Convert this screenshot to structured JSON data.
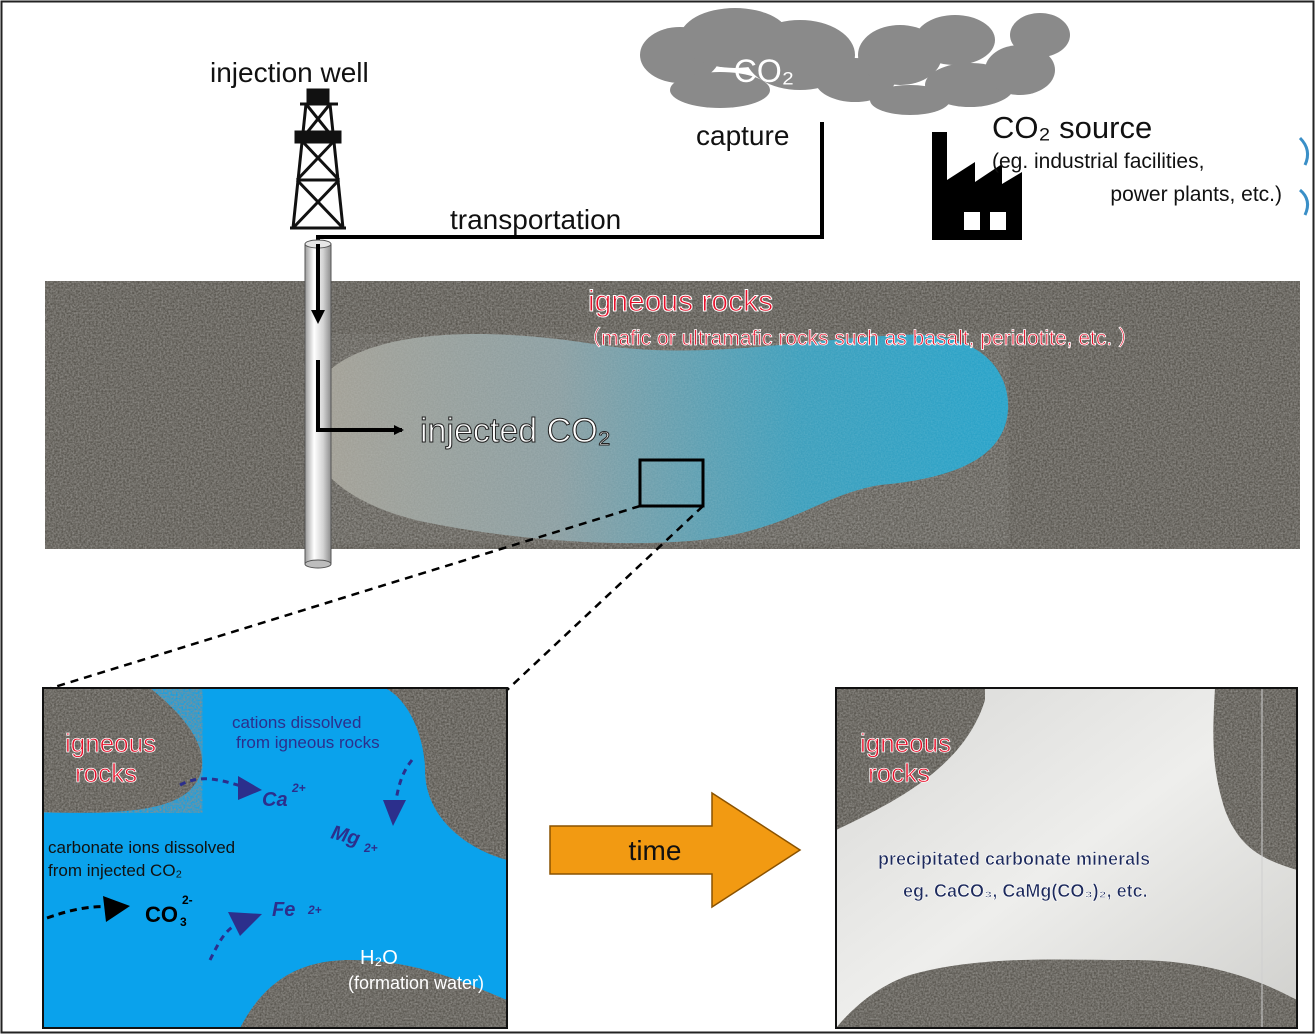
{
  "top": {
    "co2_cloud_label": "CO₂",
    "capture_label": "capture",
    "transportation_label": "transportation",
    "injection_well_label": "injection well",
    "source_title": "CO₂ source",
    "source_detail_line1": "(eg. industrial facilities,",
    "source_detail_line2": "power plants, etc.)"
  },
  "formation": {
    "rock_title": "igneous rocks",
    "rock_detail": "（mafic or ultramafic rocks such as basalt, peridotite, etc. ）",
    "injected_label": "injected CO₂"
  },
  "left_panel": {
    "rocks_line1": "igneous",
    "rocks_line2": "rocks",
    "cations_line1": "cations dissolved",
    "cations_line2": "from igneous rocks",
    "carbonate_line1": "carbonate ions dissolved",
    "carbonate_line2": "from injected CO₂",
    "ion_ca": "Ca",
    "ion_ca_charge": "2+",
    "ion_mg": "Mg",
    "ion_mg_charge": "2+",
    "ion_fe": "Fe",
    "ion_fe_charge": "2+",
    "ion_co3": "CO",
    "ion_co3_sub": "3",
    "ion_co3_charge": "2-",
    "water_line1": "H₂O",
    "water_line2": "(formation water)"
  },
  "arrow": {
    "label": "time"
  },
  "right_panel": {
    "rocks_line1": "igneous",
    "rocks_line2": "rocks",
    "minerals_line1": "precipitated carbonate minerals",
    "minerals_line2": "eg. CaCO₃, CaMg(CO₃)₂, etc."
  },
  "colors": {
    "title_red": "#e8102a",
    "water_blue": "#0aa2ec",
    "ion_navy": "#2c2f8c",
    "arrow_orange": "#f29a12",
    "rock_dark": "#4f4c46",
    "cloud_grey": "#8a8a8a"
  }
}
